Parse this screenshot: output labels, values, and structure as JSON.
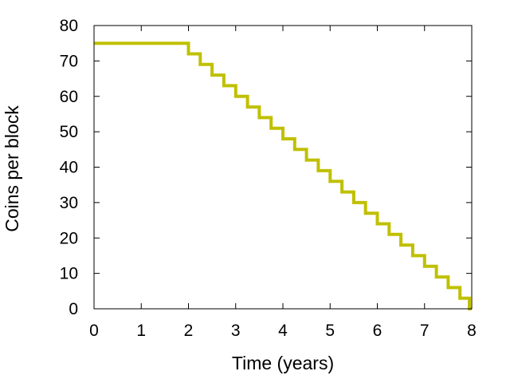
{
  "chart_data": {
    "type": "line",
    "title": "",
    "xlabel": "Time (years)",
    "ylabel": "Coins per block",
    "xlim": [
      0,
      8
    ],
    "ylim": [
      0,
      80
    ],
    "x_ticks": [
      "0",
      "1",
      "2",
      "3",
      "4",
      "5",
      "6",
      "7",
      "8"
    ],
    "y_ticks": [
      "0",
      "10",
      "20",
      "30",
      "40",
      "50",
      "60",
      "70",
      "80"
    ],
    "grid": false,
    "legend": "none",
    "line_color": "#c0c000",
    "series": [
      {
        "step": "post",
        "x": [
          0,
          2.0,
          2.25,
          2.5,
          2.75,
          3.0,
          3.25,
          3.5,
          3.75,
          4.0,
          4.25,
          4.5,
          4.75,
          5.0,
          5.25,
          5.5,
          5.75,
          6.0,
          6.25,
          6.5,
          6.75,
          7.0,
          7.25,
          7.5,
          7.75,
          7.95,
          8.0
        ],
        "y": [
          75,
          72,
          69,
          66,
          63,
          60,
          57,
          54,
          51,
          48,
          45,
          42,
          39,
          36,
          33,
          30,
          27,
          24,
          21,
          18,
          15,
          12,
          9,
          6,
          3,
          0,
          0
        ]
      }
    ]
  }
}
